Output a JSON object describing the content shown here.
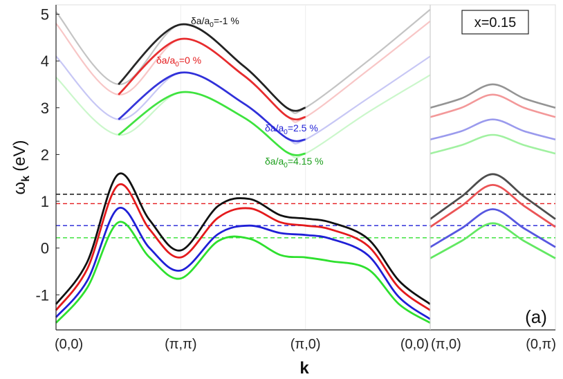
{
  "chart_data": {
    "type": "line",
    "title": "",
    "xlabel": "k",
    "ylabel": "ω_k (eV)",
    "ylabel_main": "ω",
    "ylabel_sub": "k",
    "ylabel_unit": "(eV)",
    "ylim": [
      -1.75,
      5.2
    ],
    "yticks": [
      -1,
      0,
      1,
      2,
      3,
      4,
      5
    ],
    "ytick_labels": [
      "-1",
      "0",
      "1",
      "2",
      "3",
      "4",
      "5"
    ],
    "grid": false,
    "box_label": "x=0.15",
    "panel_label": "(a)",
    "panels": [
      {
        "name": "main",
        "xlim": [
          0,
          3
        ],
        "ticks": [
          0,
          1,
          2,
          3
        ],
        "tick_labels": [
          "(0,0)",
          "(π,π)",
          "(π,0)",
          "(0,0)"
        ]
      },
      {
        "name": "inset",
        "xlim": [
          0,
          1
        ],
        "ticks": [
          0,
          1
        ],
        "tick_labels": [
          "(π,0)",
          "(0,π)"
        ]
      }
    ],
    "series": [
      {
        "name": "δa/a0=-1 %",
        "label_pre": "δa/a",
        "label_sub": "0",
        "label_post": "=-1 %",
        "color": "#111111",
        "fermi_level": 1.15,
        "upper_main": [
          [
            0,
            5.05
          ],
          [
            0.5,
            3.5
          ],
          [
            1,
            4.78
          ],
          [
            1.5,
            3.9
          ],
          [
            1.85,
            3.0
          ],
          [
            2,
            3.0
          ],
          [
            2.5,
            4.0
          ],
          [
            3,
            5.1
          ]
        ],
        "lower_main": [
          [
            0,
            -1.2
          ],
          [
            0.25,
            -0.3
          ],
          [
            0.5,
            1.58
          ],
          [
            0.75,
            0.6
          ],
          [
            1,
            -0.05
          ],
          [
            1.3,
            0.9
          ],
          [
            1.55,
            1.05
          ],
          [
            1.8,
            0.7
          ],
          [
            2,
            0.63
          ],
          [
            2.2,
            0.55
          ],
          [
            2.5,
            0.2
          ],
          [
            2.75,
            -0.7
          ],
          [
            3,
            -1.2
          ]
        ],
        "upper_inset": [
          [
            0,
            3.0
          ],
          [
            0.25,
            3.2
          ],
          [
            0.5,
            3.5
          ],
          [
            0.75,
            3.2
          ],
          [
            1,
            3.0
          ]
        ],
        "lower_inset": [
          [
            0,
            0.62
          ],
          [
            0.25,
            1.1
          ],
          [
            0.5,
            1.58
          ],
          [
            0.75,
            1.1
          ],
          [
            1,
            0.62
          ]
        ]
      },
      {
        "name": "δa/a0=0 %",
        "label_pre": "δa/a",
        "label_sub": "0",
        "label_post": "=0 %",
        "color": "#e41a1c",
        "fermi_level": 0.95,
        "upper_main": [
          [
            0,
            4.8
          ],
          [
            0.5,
            3.28
          ],
          [
            1,
            4.47
          ],
          [
            1.5,
            3.7
          ],
          [
            1.85,
            2.82
          ],
          [
            2,
            2.8
          ],
          [
            2.5,
            3.8
          ],
          [
            3,
            4.85
          ]
        ],
        "lower_main": [
          [
            0,
            -1.33
          ],
          [
            0.25,
            -0.45
          ],
          [
            0.5,
            1.35
          ],
          [
            0.75,
            0.4
          ],
          [
            1,
            -0.2
          ],
          [
            1.3,
            0.65
          ],
          [
            1.55,
            0.85
          ],
          [
            1.8,
            0.55
          ],
          [
            2,
            0.48
          ],
          [
            2.2,
            0.4
          ],
          [
            2.5,
            0.05
          ],
          [
            2.75,
            -0.85
          ],
          [
            3,
            -1.33
          ]
        ],
        "upper_inset": [
          [
            0,
            2.8
          ],
          [
            0.25,
            3.0
          ],
          [
            0.5,
            3.28
          ],
          [
            0.75,
            3.0
          ],
          [
            1,
            2.8
          ]
        ],
        "lower_inset": [
          [
            0,
            0.45
          ],
          [
            0.25,
            0.9
          ],
          [
            0.5,
            1.35
          ],
          [
            0.75,
            0.9
          ],
          [
            1,
            0.45
          ]
        ]
      },
      {
        "name": "δa/a0=2.5 %",
        "label_pre": "δa/a",
        "label_sub": "0",
        "label_post": "=2.5 %",
        "color": "#1f1fd6",
        "fermi_level": 0.48,
        "upper_main": [
          [
            0,
            4.1
          ],
          [
            0.5,
            2.75
          ],
          [
            1,
            3.75
          ],
          [
            1.5,
            3.1
          ],
          [
            1.85,
            2.35
          ],
          [
            2,
            2.32
          ],
          [
            2.5,
            3.2
          ],
          [
            3,
            4.1
          ]
        ],
        "lower_main": [
          [
            0,
            -1.48
          ],
          [
            0.25,
            -0.7
          ],
          [
            0.5,
            0.85
          ],
          [
            0.75,
            0.0
          ],
          [
            1,
            -0.48
          ],
          [
            1.3,
            0.3
          ],
          [
            1.55,
            0.48
          ],
          [
            1.8,
            0.32
          ],
          [
            2,
            0.28
          ],
          [
            2.2,
            0.2
          ],
          [
            2.5,
            -0.15
          ],
          [
            2.75,
            -1.05
          ],
          [
            3,
            -1.52
          ]
        ],
        "upper_inset": [
          [
            0,
            2.32
          ],
          [
            0.25,
            2.5
          ],
          [
            0.5,
            2.75
          ],
          [
            0.75,
            2.5
          ],
          [
            1,
            2.32
          ]
        ],
        "lower_inset": [
          [
            0,
            0.02
          ],
          [
            0.25,
            0.42
          ],
          [
            0.5,
            0.83
          ],
          [
            0.75,
            0.42
          ],
          [
            1,
            0.02
          ]
        ]
      },
      {
        "name": "δa/a0=4.15 %",
        "label_pre": "δa/a",
        "label_sub": "0",
        "label_post": "=4.15 %",
        "color": "#2ee02e",
        "fermi_level": 0.22,
        "upper_main": [
          [
            0,
            3.65
          ],
          [
            0.5,
            2.42
          ],
          [
            1,
            3.33
          ],
          [
            1.5,
            2.8
          ],
          [
            1.85,
            2.05
          ],
          [
            2,
            2.02
          ],
          [
            2.5,
            2.9
          ],
          [
            3,
            3.7
          ]
        ],
        "lower_main": [
          [
            0,
            -1.6
          ],
          [
            0.25,
            -0.85
          ],
          [
            0.5,
            0.55
          ],
          [
            0.75,
            -0.2
          ],
          [
            1,
            -0.65
          ],
          [
            1.3,
            0.15
          ],
          [
            1.55,
            0.2
          ],
          [
            1.8,
            -0.15
          ],
          [
            2,
            -0.2
          ],
          [
            2.2,
            -0.28
          ],
          [
            2.5,
            -0.45
          ],
          [
            2.75,
            -1.2
          ],
          [
            3,
            -1.6
          ]
        ],
        "upper_inset": [
          [
            0,
            2.02
          ],
          [
            0.25,
            2.2
          ],
          [
            0.5,
            2.42
          ],
          [
            0.75,
            2.2
          ],
          [
            1,
            2.02
          ]
        ],
        "lower_inset": [
          [
            0,
            -0.22
          ],
          [
            0.25,
            0.15
          ],
          [
            0.5,
            0.53
          ],
          [
            0.75,
            0.15
          ],
          [
            1,
            -0.22
          ]
        ]
      }
    ]
  },
  "colors": {
    "axis": "#222222",
    "frame": "#dddddd",
    "divider": "#cccccc",
    "gridline": "#eeeeee",
    "label_dark": "#111111",
    "label_red": "#e41a1c",
    "label_blue": "#1f1fd6",
    "label_green": "#1a9e1a"
  }
}
